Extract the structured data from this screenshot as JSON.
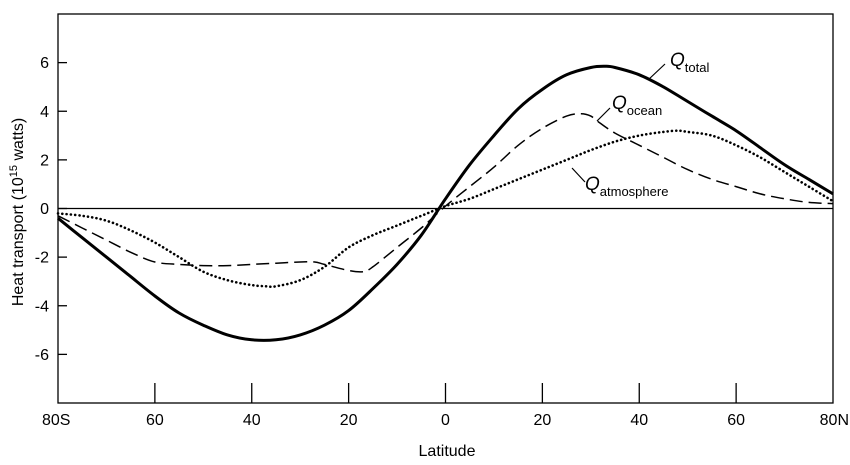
{
  "chart_data": {
    "type": "line",
    "title": "",
    "xlabel": "Latitude",
    "ylabel_main": "Heat transport (10",
    "ylabel_exp": "15",
    "ylabel_tail": " watts)",
    "xlim": [
      -80,
      80
    ],
    "ylim": [
      -8,
      8
    ],
    "x_ticks": [
      {
        "value": -80,
        "label": "80S"
      },
      {
        "value": -60,
        "label": "60"
      },
      {
        "value": -40,
        "label": "40"
      },
      {
        "value": -20,
        "label": "20"
      },
      {
        "value": 0,
        "label": "0"
      },
      {
        "value": 20,
        "label": "20"
      },
      {
        "value": 40,
        "label": "40"
      },
      {
        "value": 60,
        "label": "60"
      },
      {
        "value": 80,
        "label": "80N"
      }
    ],
    "y_ticks": [
      {
        "value": 6,
        "label": "6"
      },
      {
        "value": 4,
        "label": "4"
      },
      {
        "value": 2,
        "label": "2"
      },
      {
        "value": 0,
        "label": "0"
      },
      {
        "value": -2,
        "label": "-2"
      },
      {
        "value": -4,
        "label": "-4"
      },
      {
        "value": -6,
        "label": "-6"
      }
    ],
    "grid": false,
    "zero_line": true,
    "series": [
      {
        "name": "Q_total",
        "label_main": "Q",
        "label_sub": "total",
        "style": "solid",
        "points": [
          [
            -80,
            -0.4
          ],
          [
            -75,
            -1.2
          ],
          [
            -70,
            -2.0
          ],
          [
            -65,
            -2.8
          ],
          [
            -60,
            -3.6
          ],
          [
            -55,
            -4.3
          ],
          [
            -50,
            -4.8
          ],
          [
            -45,
            -5.2
          ],
          [
            -40,
            -5.4
          ],
          [
            -35,
            -5.4
          ],
          [
            -30,
            -5.2
          ],
          [
            -25,
            -4.8
          ],
          [
            -20,
            -4.2
          ],
          [
            -15,
            -3.3
          ],
          [
            -10,
            -2.3
          ],
          [
            -5,
            -1.1
          ],
          [
            0,
            0.4
          ],
          [
            5,
            1.8
          ],
          [
            10,
            3.0
          ],
          [
            15,
            4.1
          ],
          [
            20,
            4.9
          ],
          [
            25,
            5.5
          ],
          [
            30,
            5.8
          ],
          [
            33,
            5.85
          ],
          [
            35,
            5.8
          ],
          [
            40,
            5.5
          ],
          [
            45,
            5.0
          ],
          [
            50,
            4.4
          ],
          [
            55,
            3.8
          ],
          [
            60,
            3.2
          ],
          [
            65,
            2.5
          ],
          [
            70,
            1.8
          ],
          [
            75,
            1.2
          ],
          [
            80,
            0.6
          ]
        ]
      },
      {
        "name": "Q_ocean",
        "label_main": "Q",
        "label_sub": "ocean",
        "style": "dashed",
        "points": [
          [
            -80,
            -0.3
          ],
          [
            -75,
            -0.8
          ],
          [
            -70,
            -1.3
          ],
          [
            -65,
            -1.8
          ],
          [
            -60,
            -2.2
          ],
          [
            -55,
            -2.3
          ],
          [
            -50,
            -2.35
          ],
          [
            -45,
            -2.35
          ],
          [
            -40,
            -2.3
          ],
          [
            -35,
            -2.25
          ],
          [
            -30,
            -2.2
          ],
          [
            -27,
            -2.2
          ],
          [
            -25,
            -2.3
          ],
          [
            -20,
            -2.55
          ],
          [
            -17,
            -2.6
          ],
          [
            -15,
            -2.4
          ],
          [
            -10,
            -1.6
          ],
          [
            -5,
            -0.8
          ],
          [
            0,
            0.1
          ],
          [
            5,
            0.9
          ],
          [
            10,
            1.7
          ],
          [
            15,
            2.6
          ],
          [
            20,
            3.3
          ],
          [
            25,
            3.8
          ],
          [
            28,
            3.9
          ],
          [
            30,
            3.8
          ],
          [
            32,
            3.5
          ],
          [
            35,
            3.1
          ],
          [
            40,
            2.6
          ],
          [
            45,
            2.1
          ],
          [
            50,
            1.6
          ],
          [
            55,
            1.2
          ],
          [
            60,
            0.9
          ],
          [
            65,
            0.6
          ],
          [
            70,
            0.4
          ],
          [
            75,
            0.25
          ],
          [
            80,
            0.2
          ]
        ]
      },
      {
        "name": "Q_atmosphere",
        "label_main": "Q",
        "label_sub": "atmosphere",
        "style": "dotted",
        "points": [
          [
            -80,
            -0.2
          ],
          [
            -75,
            -0.3
          ],
          [
            -70,
            -0.5
          ],
          [
            -65,
            -0.9
          ],
          [
            -60,
            -1.4
          ],
          [
            -55,
            -2.0
          ],
          [
            -50,
            -2.6
          ],
          [
            -45,
            -2.95
          ],
          [
            -40,
            -3.15
          ],
          [
            -37,
            -3.2
          ],
          [
            -35,
            -3.2
          ],
          [
            -30,
            -2.95
          ],
          [
            -25,
            -2.4
          ],
          [
            -20,
            -1.6
          ],
          [
            -15,
            -1.1
          ],
          [
            -10,
            -0.7
          ],
          [
            -5,
            -0.3
          ],
          [
            0,
            0.1
          ],
          [
            5,
            0.4
          ],
          [
            10,
            0.8
          ],
          [
            15,
            1.2
          ],
          [
            20,
            1.6
          ],
          [
            25,
            2.0
          ],
          [
            30,
            2.4
          ],
          [
            35,
            2.75
          ],
          [
            40,
            3.0
          ],
          [
            45,
            3.15
          ],
          [
            48,
            3.2
          ],
          [
            50,
            3.15
          ],
          [
            55,
            3.0
          ],
          [
            60,
            2.6
          ],
          [
            65,
            2.1
          ],
          [
            70,
            1.5
          ],
          [
            75,
            0.9
          ],
          [
            80,
            0.3
          ]
        ]
      }
    ]
  }
}
